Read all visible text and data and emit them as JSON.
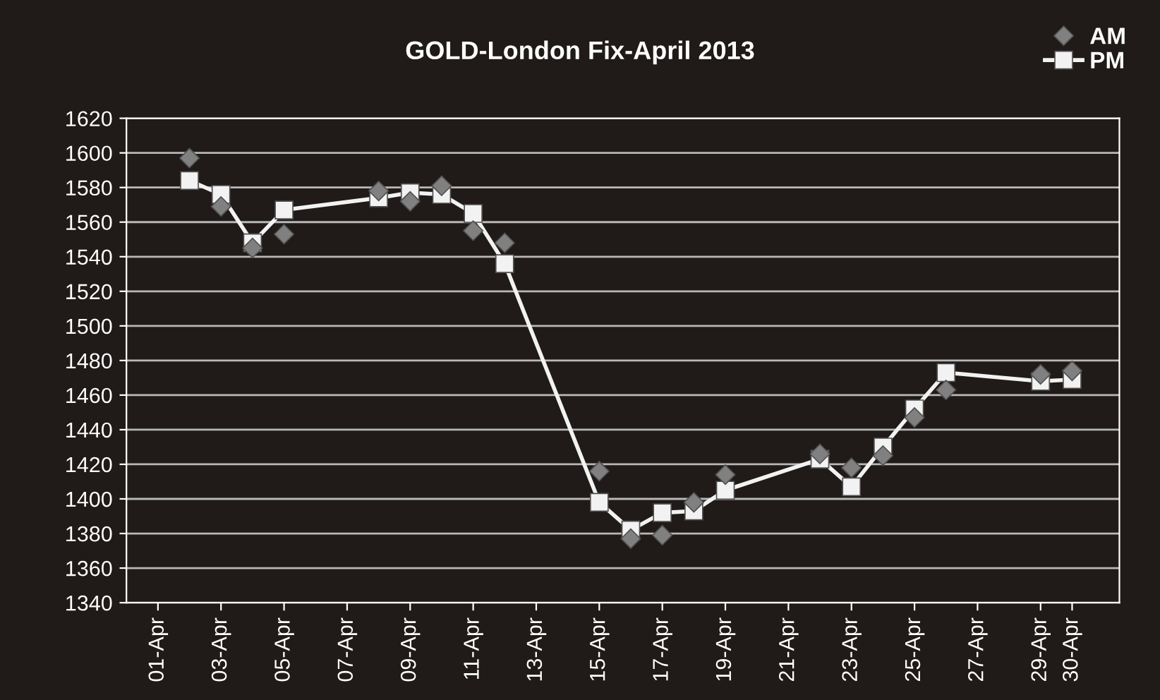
{
  "chart_data": {
    "type": "line",
    "title": "GOLD-London Fix-April 2013",
    "x": [
      "2013-04-02",
      "2013-04-03",
      "2013-04-04",
      "2013-04-05",
      "2013-04-08",
      "2013-04-09",
      "2013-04-10",
      "2013-04-11",
      "2013-04-12",
      "2013-04-15",
      "2013-04-16",
      "2013-04-17",
      "2013-04-18",
      "2013-04-19",
      "2013-04-22",
      "2013-04-23",
      "2013-04-24",
      "2013-04-25",
      "2013-04-26",
      "2013-04-29",
      "2013-04-30"
    ],
    "series": [
      {
        "name": "AM",
        "type": "scatter",
        "marker": "diamond",
        "color": "#808080",
        "values": [
          1597,
          1569,
          1545,
          1553,
          1578,
          1572,
          1581,
          1555,
          1548,
          1416,
          1377,
          1379,
          1398,
          1414,
          1426,
          1418,
          1425,
          1447,
          1463,
          1472,
          1474
        ]
      },
      {
        "name": "PM",
        "marker": "square",
        "color": "#f2f2f2",
        "values": [
          1584,
          1576,
          1548,
          1567,
          1574,
          1577,
          1576,
          1565,
          1536,
          1398,
          1382,
          1392,
          1393,
          1405,
          1423,
          1407,
          1430,
          1452,
          1473,
          1468,
          1469
        ]
      }
    ],
    "xlim": [
      "2013-03-31",
      "2013-05-01T12:00"
    ],
    "xticks": [
      {
        "value": "2013-04-01",
        "label": "01-Apr"
      },
      {
        "value": "2013-04-03",
        "label": "03-Apr"
      },
      {
        "value": "2013-04-05",
        "label": "05-Apr"
      },
      {
        "value": "2013-04-07",
        "label": "07-Apr"
      },
      {
        "value": "2013-04-09",
        "label": "09-Apr"
      },
      {
        "value": "2013-04-11",
        "label": "11-Apr"
      },
      {
        "value": "2013-04-13",
        "label": "13-Apr"
      },
      {
        "value": "2013-04-15",
        "label": "15-Apr"
      },
      {
        "value": "2013-04-17",
        "label": "17-Apr"
      },
      {
        "value": "2013-04-19",
        "label": "19-Apr"
      },
      {
        "value": "2013-04-21",
        "label": "21-Apr"
      },
      {
        "value": "2013-04-23",
        "label": "23-Apr"
      },
      {
        "value": "2013-04-25",
        "label": "25-Apr"
      },
      {
        "value": "2013-04-27",
        "label": "27-Apr"
      },
      {
        "value": "2013-04-29",
        "label": "29-Apr"
      },
      {
        "value": "2013-04-30",
        "label": "30-Apr"
      }
    ],
    "ylim": [
      1340,
      1620
    ],
    "yticks": [
      1340,
      1360,
      1380,
      1400,
      1420,
      1440,
      1460,
      1480,
      1500,
      1520,
      1540,
      1560,
      1580,
      1600,
      1620
    ],
    "grid": "y",
    "legend": "top right"
  }
}
